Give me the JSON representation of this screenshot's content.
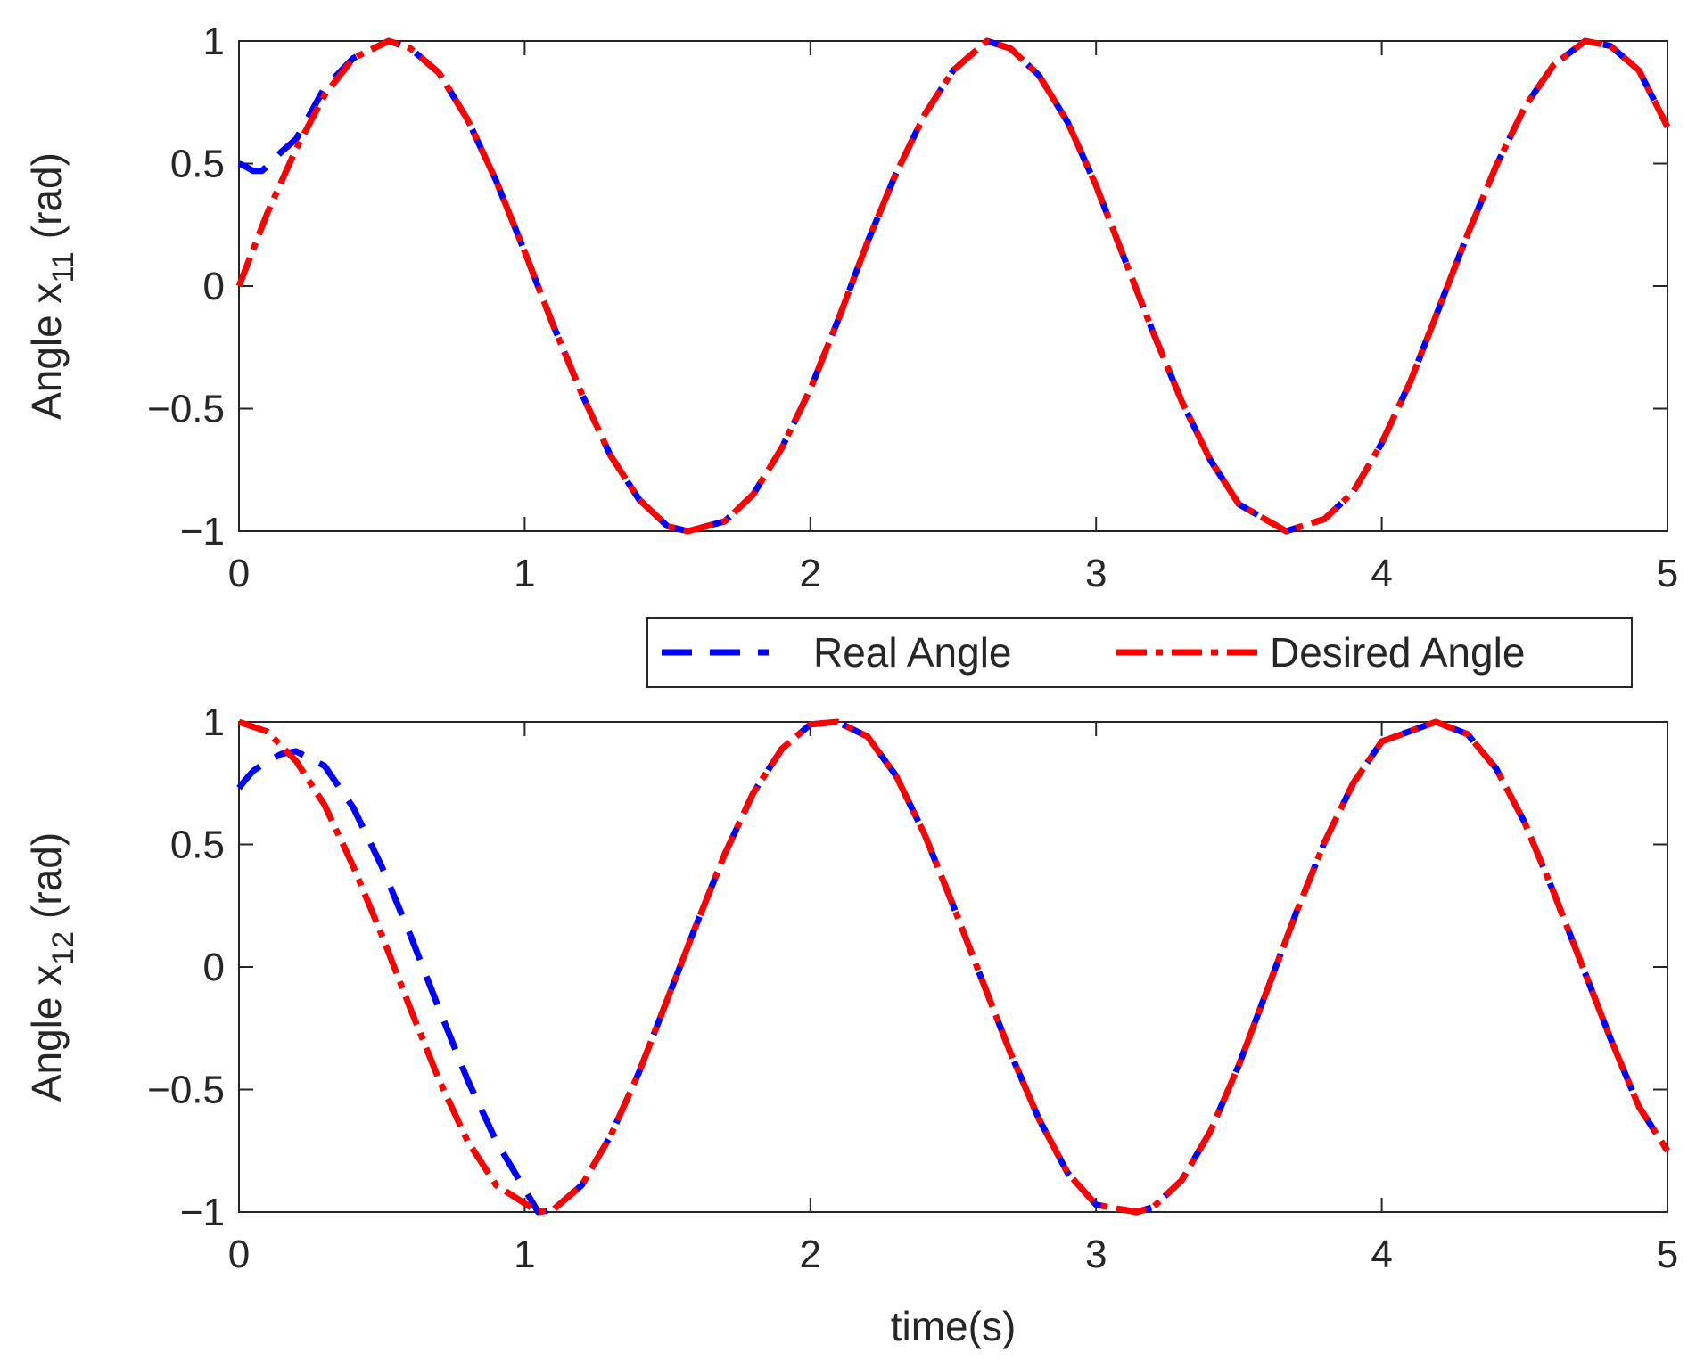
{
  "chart_data": [
    {
      "type": "line",
      "xlabel": "",
      "ylabel_main": "Angle x",
      "ylabel_sub": "11",
      "ylabel_unit": "(rad)",
      "xlim": [
        0,
        5
      ],
      "ylim": [
        -1,
        1
      ],
      "xticks": [
        0,
        1,
        2,
        3,
        4,
        5
      ],
      "yticks": [
        -1,
        -0.5,
        0,
        0.5,
        1
      ],
      "xtick_labels": [
        "0",
        "1",
        "2",
        "3",
        "4",
        "5"
      ],
      "ytick_labels": [
        "−1",
        "−0.5",
        "0",
        "0.5",
        "1"
      ],
      "grid": false,
      "series": [
        {
          "name": "Real Angle",
          "color": "#0000ff",
          "style": "dashed",
          "x": [
            0,
            0.02,
            0.05,
            0.08,
            0.1,
            0.15,
            0.2,
            0.3,
            0.4,
            0.524,
            0.6,
            0.7,
            0.8,
            0.9,
            1.0,
            1.1,
            1.2,
            1.3,
            1.4,
            1.5,
            1.571,
            1.7,
            1.8,
            1.9,
            2.0,
            2.1,
            2.2,
            2.3,
            2.4,
            2.5,
            2.618,
            2.7,
            2.8,
            2.9,
            3.0,
            3.1,
            3.2,
            3.3,
            3.4,
            3.5,
            3.665,
            3.8,
            3.9,
            4.0,
            4.1,
            4.2,
            4.3,
            4.4,
            4.5,
            4.6,
            4.712,
            4.8,
            4.9,
            5.0
          ],
          "y": [
            0.5,
            0.49,
            0.47,
            0.47,
            0.49,
            0.55,
            0.6,
            0.81,
            0.93,
            1.0,
            0.97,
            0.87,
            0.68,
            0.43,
            0.14,
            -0.16,
            -0.44,
            -0.69,
            -0.87,
            -0.98,
            -1.0,
            -0.96,
            -0.85,
            -0.66,
            -0.42,
            -0.13,
            0.18,
            0.46,
            0.7,
            0.88,
            1.0,
            0.97,
            0.86,
            0.67,
            0.41,
            0.11,
            -0.19,
            -0.47,
            -0.71,
            -0.89,
            -1.0,
            -0.95,
            -0.84,
            -0.64,
            -0.39,
            -0.09,
            0.21,
            0.49,
            0.73,
            0.9,
            1.0,
            0.98,
            0.88,
            0.65
          ]
        },
        {
          "name": "Desired Angle",
          "color": "#ff0000",
          "style": "dashdot",
          "x": [
            0,
            0.1,
            0.2,
            0.3,
            0.4,
            0.524,
            0.6,
            0.7,
            0.8,
            0.9,
            1.0,
            1.1,
            1.2,
            1.3,
            1.4,
            1.5,
            1.571,
            1.7,
            1.8,
            1.9,
            2.0,
            2.1,
            2.2,
            2.3,
            2.4,
            2.5,
            2.618,
            2.7,
            2.8,
            2.9,
            3.0,
            3.1,
            3.2,
            3.3,
            3.4,
            3.5,
            3.665,
            3.8,
            3.9,
            4.0,
            4.1,
            4.2,
            4.3,
            4.4,
            4.5,
            4.6,
            4.712,
            4.8,
            4.9,
            5.0
          ],
          "y": [
            0.0,
            0.3,
            0.56,
            0.78,
            0.93,
            1.0,
            0.97,
            0.87,
            0.68,
            0.43,
            0.14,
            -0.16,
            -0.44,
            -0.69,
            -0.87,
            -0.98,
            -1.0,
            -0.96,
            -0.85,
            -0.66,
            -0.42,
            -0.13,
            0.18,
            0.46,
            0.7,
            0.88,
            1.0,
            0.97,
            0.86,
            0.67,
            0.41,
            0.11,
            -0.19,
            -0.47,
            -0.71,
            -0.89,
            -1.0,
            -0.95,
            -0.84,
            -0.64,
            -0.39,
            -0.09,
            0.21,
            0.49,
            0.73,
            0.9,
            1.0,
            0.98,
            0.88,
            0.65
          ]
        }
      ]
    },
    {
      "type": "line",
      "xlabel": "time(s)",
      "ylabel_main": "Angle x",
      "ylabel_sub": "12",
      "ylabel_unit": "(rad)",
      "xlim": [
        0,
        5
      ],
      "ylim": [
        -1,
        1
      ],
      "xticks": [
        0,
        1,
        2,
        3,
        4,
        5
      ],
      "yticks": [
        -1,
        -0.5,
        0,
        0.5,
        1
      ],
      "xtick_labels": [
        "0",
        "1",
        "2",
        "3",
        "4",
        "5"
      ],
      "ytick_labels": [
        "−1",
        "−0.5",
        "0",
        "0.5",
        "1"
      ],
      "grid": false,
      "series": [
        {
          "name": "Real Angle",
          "color": "#0000ff",
          "style": "dashed",
          "x": [
            0,
            0.02,
            0.05,
            0.1,
            0.15,
            0.2,
            0.3,
            0.4,
            0.5,
            0.6,
            0.7,
            0.8,
            0.9,
            1.047,
            1.1,
            1.2,
            1.3,
            1.4,
            1.5,
            1.6,
            1.7,
            1.8,
            1.9,
            2.0,
            2.094,
            2.2,
            2.3,
            2.4,
            2.5,
            2.6,
            2.7,
            2.8,
            2.9,
            3.0,
            3.142,
            3.2,
            3.3,
            3.4,
            3.5,
            3.6,
            3.7,
            3.8,
            3.9,
            4.0,
            4.189,
            4.3,
            4.4,
            4.5,
            4.6,
            4.7,
            4.8,
            4.9,
            5.0
          ],
          "y": [
            0.73,
            0.76,
            0.8,
            0.84,
            0.87,
            0.88,
            0.82,
            0.65,
            0.41,
            0.13,
            -0.17,
            -0.46,
            -0.71,
            -1.0,
            -0.99,
            -0.89,
            -0.69,
            -0.43,
            -0.13,
            0.17,
            0.46,
            0.71,
            0.89,
            0.99,
            1.0,
            0.94,
            0.78,
            0.54,
            0.25,
            -0.05,
            -0.35,
            -0.62,
            -0.84,
            -0.97,
            -1.0,
            -0.98,
            -0.87,
            -0.67,
            -0.4,
            -0.09,
            0.22,
            0.51,
            0.75,
            0.92,
            1.0,
            0.95,
            0.81,
            0.59,
            0.31,
            0.01,
            -0.29,
            -0.57,
            -0.75
          ]
        },
        {
          "name": "Desired Angle",
          "color": "#ff0000",
          "style": "dashdot",
          "x": [
            0,
            0.1,
            0.2,
            0.3,
            0.4,
            0.5,
            0.6,
            0.7,
            0.8,
            0.9,
            1.047,
            1.1,
            1.2,
            1.3,
            1.4,
            1.5,
            1.6,
            1.7,
            1.8,
            1.9,
            2.0,
            2.094,
            2.2,
            2.3,
            2.4,
            2.5,
            2.6,
            2.7,
            2.8,
            2.9,
            3.0,
            3.142,
            3.2,
            3.3,
            3.4,
            3.5,
            3.6,
            3.7,
            3.8,
            3.9,
            4.0,
            4.189,
            4.3,
            4.4,
            4.5,
            4.6,
            4.7,
            4.8,
            4.9,
            5.0
          ],
          "y": [
            1.0,
            0.96,
            0.84,
            0.66,
            0.41,
            0.13,
            -0.17,
            -0.46,
            -0.71,
            -0.89,
            -1.0,
            -0.99,
            -0.89,
            -0.69,
            -0.43,
            -0.13,
            0.17,
            0.46,
            0.71,
            0.89,
            0.99,
            1.0,
            0.94,
            0.78,
            0.54,
            0.25,
            -0.05,
            -0.35,
            -0.62,
            -0.84,
            -0.97,
            -1.0,
            -0.98,
            -0.87,
            -0.67,
            -0.4,
            -0.09,
            0.22,
            0.51,
            0.75,
            0.92,
            1.0,
            0.95,
            0.81,
            0.59,
            0.31,
            0.01,
            -0.29,
            -0.57,
            -0.75
          ]
        }
      ]
    }
  ],
  "legend": {
    "placement": "between-panels-right",
    "entries": [
      {
        "label": "Real Angle",
        "color": "#0000ff",
        "style": "dashed"
      },
      {
        "label": "Desired Angle",
        "color": "#ff0000",
        "style": "dashdot"
      }
    ]
  }
}
